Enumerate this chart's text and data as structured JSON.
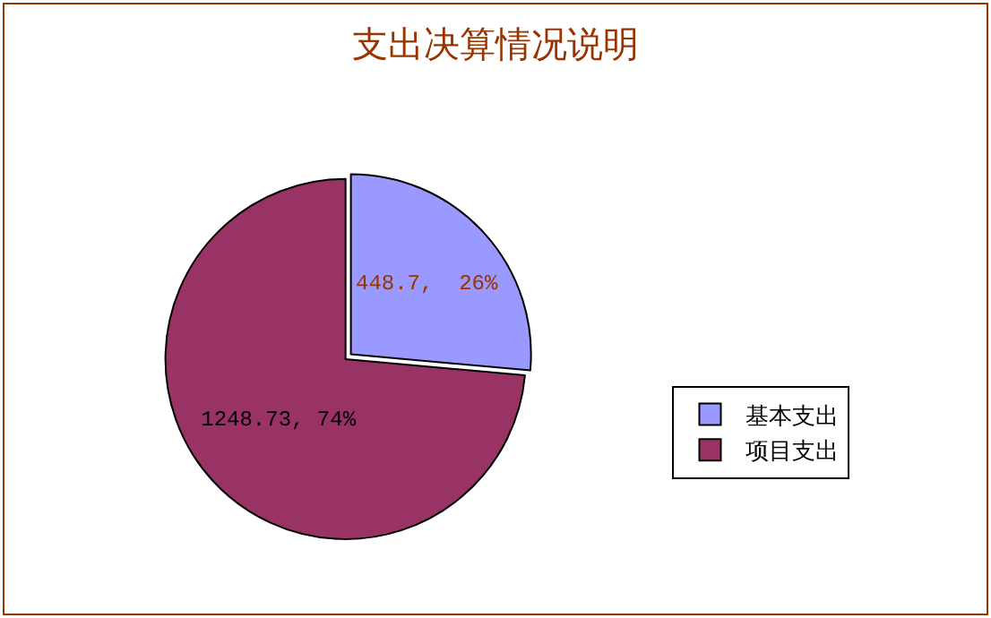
{
  "chart_data": {
    "type": "pie",
    "title": "支出决算情况说明",
    "categories": [
      "基本支出",
      "项目支出"
    ],
    "values": [
      448.7,
      1248.73
    ],
    "colors": [
      "#9999ff",
      "#993366"
    ],
    "value_labels": [
      "448.7,  26%",
      "1248.73, 74%"
    ],
    "legend": "right"
  }
}
